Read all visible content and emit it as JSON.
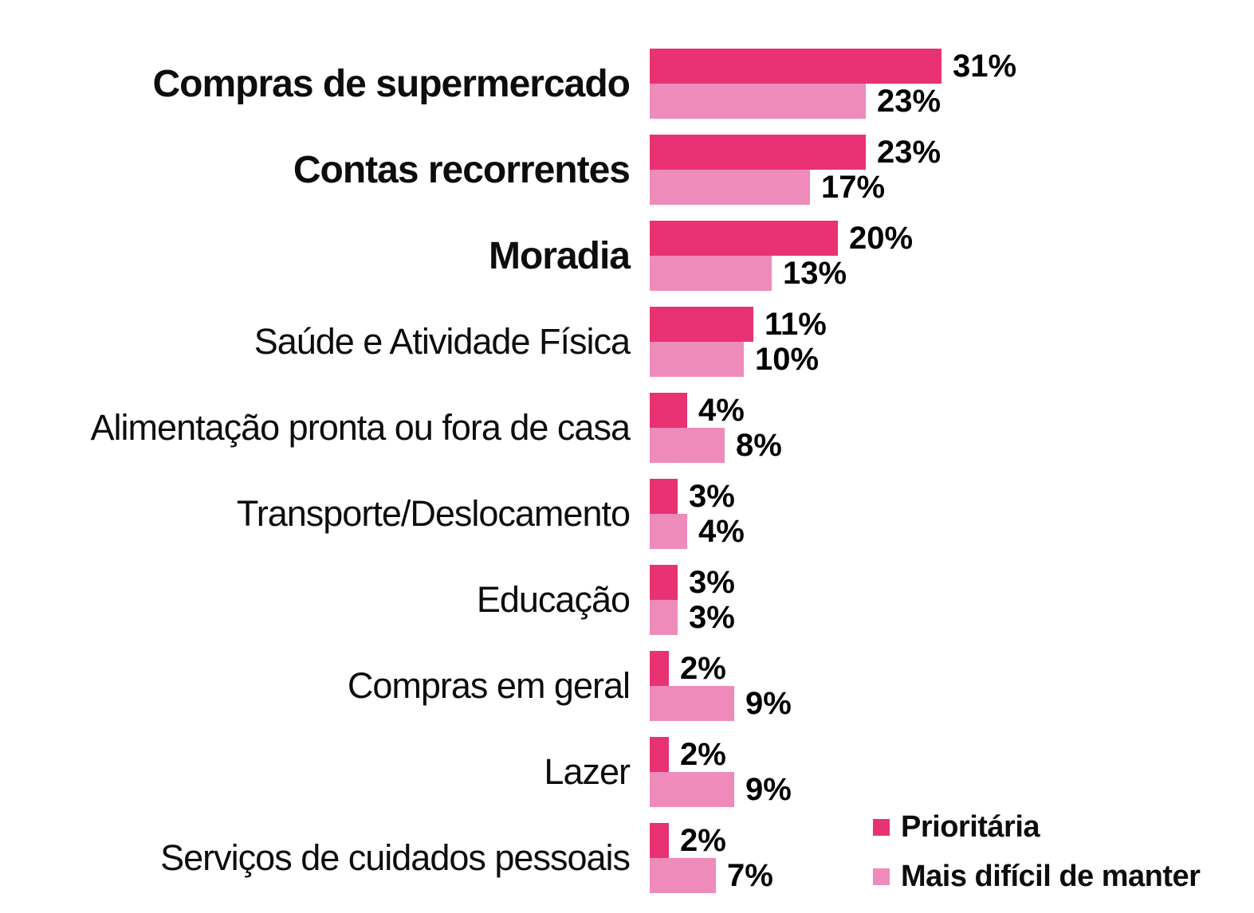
{
  "chart_data": {
    "type": "bar",
    "orientation": "horizontal",
    "title": "",
    "xlabel": "",
    "ylabel": "",
    "xlim": [
      0,
      33
    ],
    "grid": false,
    "legend_position": "bottom-right",
    "value_suffix": "%",
    "categories": [
      {
        "label": "Compras de supermercado",
        "bold": true
      },
      {
        "label": "Contas recorrentes",
        "bold": true
      },
      {
        "label": "Moradia",
        "bold": true
      },
      {
        "label": "Saúde e Atividade Física",
        "bold": false
      },
      {
        "label": "Alimentação pronta ou fora de casa",
        "bold": false
      },
      {
        "label": "Transporte/Deslocamento",
        "bold": false
      },
      {
        "label": "Educação",
        "bold": false
      },
      {
        "label": "Compras em geral",
        "bold": false
      },
      {
        "label": "Lazer",
        "bold": false
      },
      {
        "label": "Serviços de cuidados pessoais",
        "bold": false
      }
    ],
    "series": [
      {
        "name": "Prioritária",
        "color": "#E83273",
        "values": [
          31,
          23,
          20,
          11,
          4,
          3,
          3,
          2,
          2,
          2
        ]
      },
      {
        "name": "Mais difícil de manter",
        "color": "#EE8BBB",
        "values": [
          23,
          17,
          13,
          10,
          8,
          4,
          3,
          9,
          9,
          7
        ]
      }
    ]
  }
}
